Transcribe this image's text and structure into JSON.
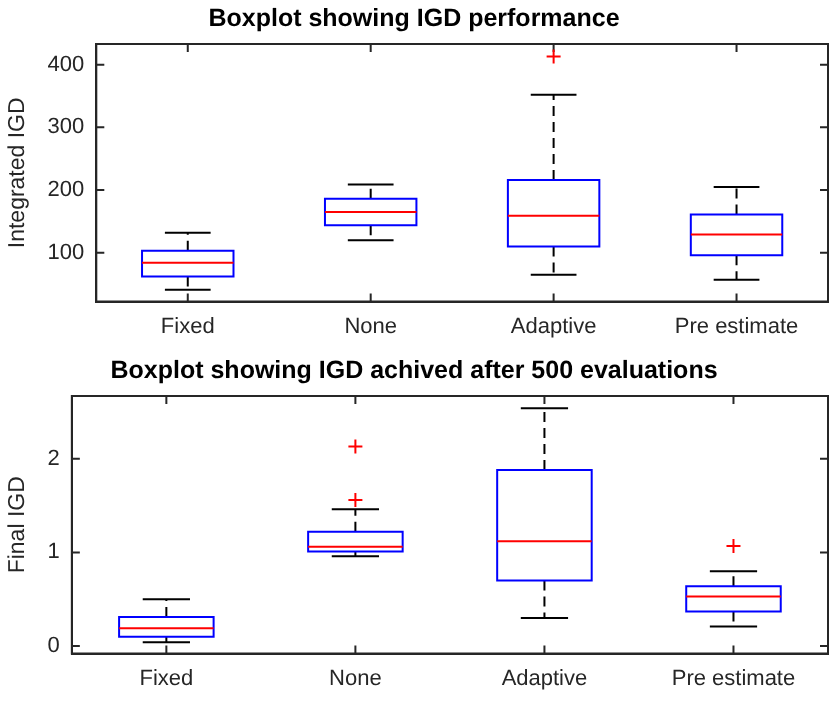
{
  "chart_data": [
    {
      "type": "box",
      "title": "Boxplot showing IGD performance",
      "ylabel": "Integrated IGD",
      "categories": [
        "Fixed",
        "None",
        "Adaptive",
        "Pre estimate"
      ],
      "ylim": [
        22,
        433
      ],
      "yticks": [
        100,
        200,
        300,
        400
      ],
      "grid": false,
      "series": [
        {
          "color": "#0000ff",
          "boxes": [
            {
              "low": 41,
              "q1": 62,
              "median": 84,
              "q3": 103,
              "high": 132
            },
            {
              "low": 120,
              "q1": 144,
              "median": 165,
              "q3": 186,
              "high": 209
            },
            {
              "low": 65,
              "q1": 110,
              "median": 159,
              "q3": 216,
              "high": 352,
              "outliers": [
                413
              ]
            },
            {
              "low": 57,
              "q1": 96,
              "median": 129,
              "q3": 161,
              "high": 205
            }
          ]
        }
      ]
    },
    {
      "type": "box",
      "title": "Boxplot showing IGD achived after 500 evaluations",
      "ylabel": "Final IGD",
      "categories": [
        "Fixed",
        "None",
        "Adaptive",
        "Pre estimate"
      ],
      "ylim": [
        -0.08,
        2.67
      ],
      "yticks": [
        0,
        1,
        2
      ],
      "grid": false,
      "series": [
        {
          "color": "#0000ff",
          "boxes": [
            {
              "low": 0.04,
              "q1": 0.1,
              "median": 0.19,
              "q3": 0.31,
              "high": 0.5
            },
            {
              "low": 0.96,
              "q1": 1.01,
              "median": 1.06,
              "q3": 1.22,
              "high": 1.46,
              "outliers": [
                1.56,
                2.13
              ]
            },
            {
              "low": 0.3,
              "q1": 0.7,
              "median": 1.12,
              "q3": 1.88,
              "high": 2.54
            },
            {
              "low": 0.21,
              "q1": 0.37,
              "median": 0.53,
              "q3": 0.64,
              "high": 0.8,
              "outliers": [
                1.07
              ]
            }
          ]
        }
      ]
    }
  ]
}
